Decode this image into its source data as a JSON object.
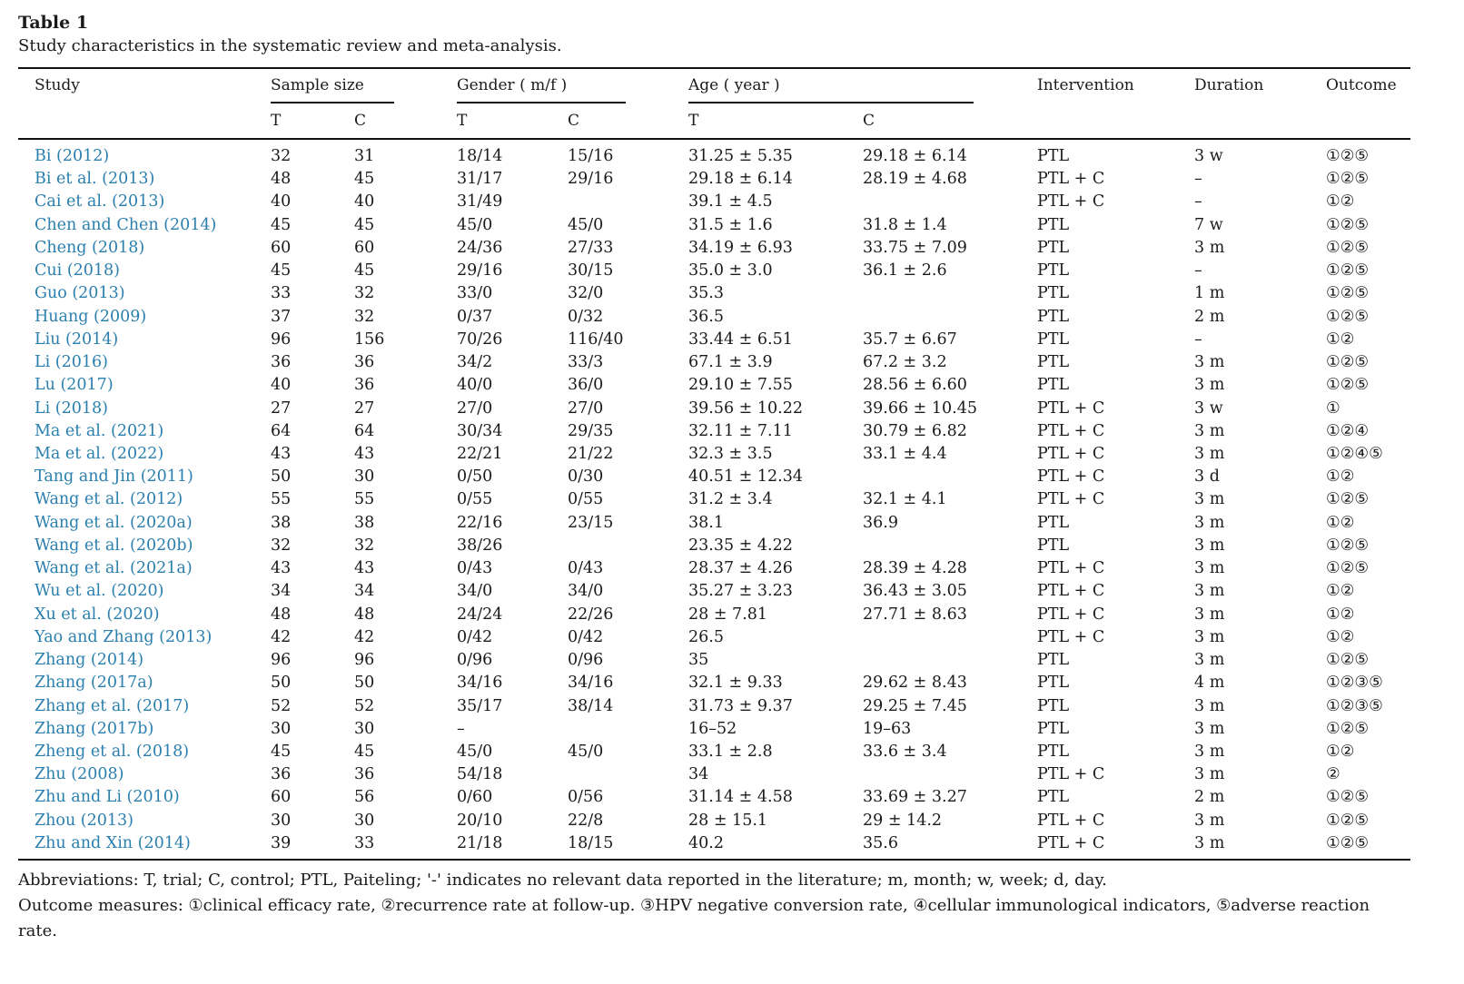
{
  "table": {
    "title": "Table 1",
    "caption": "Study characteristics in the systematic review and meta-analysis.",
    "headers": {
      "study": "Study",
      "sample_size": "Sample size",
      "gender": "Gender ( m/f )",
      "age": "Age ( year )",
      "intervention": "Intervention",
      "duration": "Duration",
      "outcome": "Outcome",
      "t": "T",
      "c": "C"
    },
    "rows": [
      [
        "Bi (2012)",
        "32",
        "31",
        "18/14",
        "15/16",
        "31.25 ± 5.35",
        "29.18 ± 6.14",
        "PTL",
        "3 w",
        "①②⑤"
      ],
      [
        "Bi et al. (2013)",
        "48",
        "45",
        "31/17",
        "29/16",
        "29.18 ± 6.14",
        "28.19 ± 4.68",
        "PTL + C",
        "–",
        "①②⑤"
      ],
      [
        "Cai et al. (2013)",
        "40",
        "40",
        "31/49",
        "",
        "39.1 ± 4.5",
        "",
        "PTL + C",
        "–",
        "①②"
      ],
      [
        "Chen and Chen (2014)",
        "45",
        "45",
        "45/0",
        "45/0",
        "31.5 ± 1.6",
        "31.8 ± 1.4",
        "PTL",
        "7 w",
        "①②⑤"
      ],
      [
        "Cheng (2018)",
        "60",
        "60",
        "24/36",
        "27/33",
        "34.19 ± 6.93",
        "33.75 ± 7.09",
        "PTL",
        "3 m",
        "①②⑤"
      ],
      [
        "Cui (2018)",
        "45",
        "45",
        "29/16",
        "30/15",
        "35.0 ± 3.0",
        "36.1 ± 2.6",
        "PTL",
        "–",
        "①②⑤"
      ],
      [
        "Guo (2013)",
        "33",
        "32",
        "33/0",
        "32/0",
        "35.3",
        "",
        "PTL",
        "1 m",
        "①②⑤"
      ],
      [
        "Huang (2009)",
        "37",
        "32",
        "0/37",
        "0/32",
        "36.5",
        "",
        "PTL",
        "2 m",
        "①②⑤"
      ],
      [
        "Liu (2014)",
        "96",
        "156",
        "70/26",
        "116/40",
        "33.44 ± 6.51",
        "35.7 ± 6.67",
        "PTL",
        "–",
        "①②"
      ],
      [
        "Li (2016)",
        "36",
        "36",
        "34/2",
        "33/3",
        "67.1 ± 3.9",
        "67.2 ± 3.2",
        "PTL",
        "3 m",
        "①②⑤"
      ],
      [
        "Lu (2017)",
        "40",
        "36",
        "40/0",
        "36/0",
        "29.10 ± 7.55",
        "28.56 ± 6.60",
        "PTL",
        "3 m",
        "①②⑤"
      ],
      [
        "Li (2018)",
        "27",
        "27",
        "27/0",
        "27/0",
        "39.56 ± 10.22",
        "39.66 ± 10.45",
        "PTL + C",
        "3 w",
        "①"
      ],
      [
        "Ma et al. (2021)",
        "64",
        "64",
        "30/34",
        "29/35",
        "32.11 ± 7.11",
        "30.79 ± 6.82",
        "PTL + C",
        "3 m",
        "①②④"
      ],
      [
        "Ma et al. (2022)",
        "43",
        "43",
        "22/21",
        "21/22",
        "32.3 ± 3.5",
        "33.1 ± 4.4",
        "PTL + C",
        "3 m",
        "①②④⑤"
      ],
      [
        "Tang and Jin (2011)",
        "50",
        "30",
        "0/50",
        "0/30",
        "40.51 ± 12.34",
        "",
        "PTL + C",
        "3 d",
        "①②"
      ],
      [
        "Wang et al. (2012)",
        "55",
        "55",
        "0/55",
        "0/55",
        "31.2 ± 3.4",
        "32.1 ± 4.1",
        "PTL + C",
        "3 m",
        "①②⑤"
      ],
      [
        "Wang et al. (2020a)",
        "38",
        "38",
        "22/16",
        "23/15",
        "38.1",
        "36.9",
        "PTL",
        "3 m",
        "①②"
      ],
      [
        "Wang et al. (2020b)",
        "32",
        "32",
        "38/26",
        "",
        "23.35 ± 4.22",
        "",
        "PTL",
        "3 m",
        "①②⑤"
      ],
      [
        "Wang et al. (2021a)",
        "43",
        "43",
        "0/43",
        "0/43",
        "28.37 ± 4.26",
        "28.39 ± 4.28",
        "PTL + C",
        "3 m",
        "①②⑤"
      ],
      [
        "Wu et al. (2020)",
        "34",
        "34",
        "34/0",
        "34/0",
        "35.27 ± 3.23",
        "36.43 ± 3.05",
        "PTL + C",
        "3 m",
        "①②"
      ],
      [
        "Xu et al. (2020)",
        "48",
        "48",
        "24/24",
        "22/26",
        "28 ± 7.81",
        "27.71 ± 8.63",
        "PTL + C",
        "3 m",
        "①②"
      ],
      [
        "Yao and Zhang (2013)",
        "42",
        "42",
        "0/42",
        "0/42",
        "26.5",
        "",
        "PTL + C",
        "3 m",
        "①②"
      ],
      [
        "Zhang (2014)",
        "96",
        "96",
        "0/96",
        "0/96",
        "35",
        "",
        "PTL",
        "3 m",
        "①②⑤"
      ],
      [
        "Zhang (2017a)",
        "50",
        "50",
        "34/16",
        "34/16",
        "32.1 ± 9.33",
        "29.62 ± 8.43",
        "PTL",
        "4 m",
        "①②③⑤"
      ],
      [
        "Zhang et al. (2017)",
        "52",
        "52",
        "35/17",
        "38/14",
        "31.73 ± 9.37",
        "29.25 ± 7.45",
        "PTL",
        "3 m",
        "①②③⑤"
      ],
      [
        "Zhang (2017b)",
        "30",
        "30",
        "–",
        "",
        "16–52",
        "19–63",
        "PTL",
        "3 m",
        "①②⑤"
      ],
      [
        "Zheng et al. (2018)",
        "45",
        "45",
        "45/0",
        "45/0",
        "33.1 ± 2.8",
        "33.6 ± 3.4",
        "PTL",
        "3 m",
        "①②"
      ],
      [
        "Zhu (2008)",
        "36",
        "36",
        "54/18",
        "",
        "34",
        "",
        "PTL + C",
        "3 m",
        "②"
      ],
      [
        "Zhu and Li (2010)",
        "60",
        "56",
        "0/60",
        "0/56",
        "31.14 ± 4.58",
        "33.69 ± 3.27",
        "PTL",
        "2 m",
        "①②⑤"
      ],
      [
        "Zhou (2013)",
        "30",
        "30",
        "20/10",
        "22/8",
        "28 ± 15.1",
        "29 ± 14.2",
        "PTL + C",
        "3 m",
        "①②⑤"
      ],
      [
        "Zhu and Xin (2014)",
        "39",
        "33",
        "21/18",
        "18/15",
        "40.2",
        "35.6",
        "PTL + C",
        "3 m",
        "①②⑤"
      ]
    ],
    "footnotes": [
      "Abbreviations: T, trial; C, control; PTL, Paiteling; '-' indicates no relevant data reported in the literature; m, month; w, week; d, day.",
      "Outcome measures: ①clinical efficacy rate, ②recurrence rate at follow-up. ③HPV negative conversion rate, ④cellular immunological indicators, ⑤adverse reaction rate."
    ],
    "link_color": "#2a7fae"
  }
}
